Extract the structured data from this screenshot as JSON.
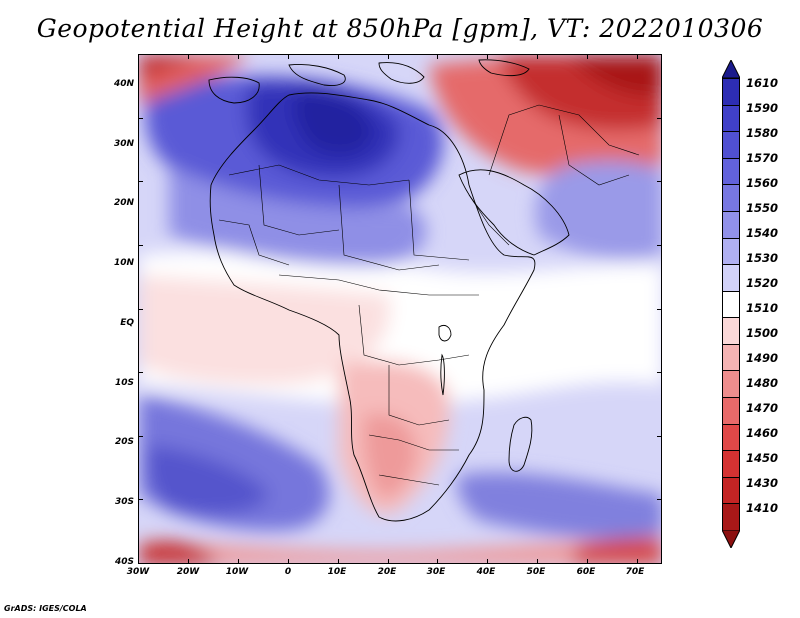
{
  "title": "Geopotential Height at 850hPa [gpm], VT: 2022010306",
  "map": {
    "variable": "Geopotential Height",
    "level": "850hPa",
    "units": "gpm",
    "valid_time": "2022010306",
    "latitude_labels": [
      "40N",
      "30N",
      "20N",
      "10N",
      "EQ",
      "10S",
      "20S",
      "30S",
      "40S"
    ],
    "longitude_labels": [
      "30W",
      "20W",
      "10W",
      "0",
      "10E",
      "20E",
      "30E",
      "40E",
      "50E",
      "60E",
      "70E"
    ]
  },
  "colorbar": {
    "levels": [
      "1610",
      "1590",
      "1580",
      "1570",
      "1560",
      "1550",
      "1540",
      "1530",
      "1520",
      "1510",
      "1500",
      "1490",
      "1480",
      "1470",
      "1460",
      "1450",
      "1430",
      "1410"
    ],
    "colors_top_to_bottom": [
      "#1a1a8c",
      "#2d2db4",
      "#4040c8",
      "#5050d2",
      "#6262dc",
      "#7777e2",
      "#9191ea",
      "#b0b0f2",
      "#d2d2f9",
      "#ffffff",
      "#fbd8d8",
      "#f5b3b3",
      "#ee8d8d",
      "#e86a6a",
      "#e04848",
      "#d43232",
      "#c42424",
      "#a81818",
      "#8c1010"
    ]
  },
  "colors": {
    "high_dark": "#2a2aa8",
    "high_mid": "#6a6ad8",
    "high_light": "#c8c8f4",
    "neutral": "#ffffff",
    "low_light": "#fadada",
    "low_mid": "#ef8e8e",
    "low_dark": "#b52020"
  },
  "credit": "GrADS: IGES/COLA"
}
